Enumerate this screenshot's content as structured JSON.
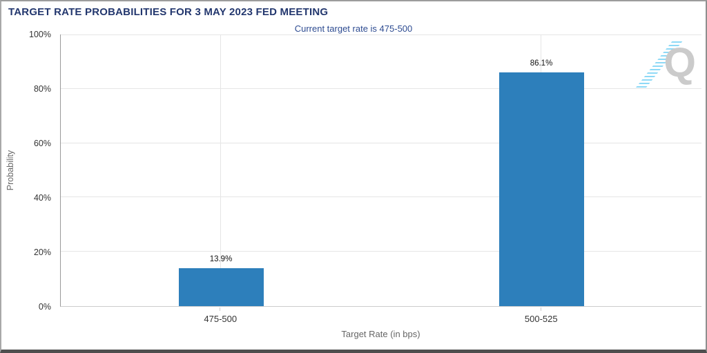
{
  "header": {
    "title": "TARGET RATE PROBABILITIES FOR 3 MAY 2023 FED MEETING",
    "subtitle": "Current target rate is 475-500"
  },
  "logo": {
    "letter": "Q"
  },
  "chart_data": {
    "type": "bar",
    "title": "TARGET RATE PROBABILITIES FOR 3 MAY 2023 FED MEETING",
    "subtitle": "Current target rate is 475-500",
    "categories": [
      "475-500",
      "500-525"
    ],
    "values": [
      13.9,
      86.1
    ],
    "data_labels": [
      "13.9%",
      "86.1%"
    ],
    "xlabel": "Target Rate (in bps)",
    "ylabel": "Probability",
    "ylim": [
      0,
      100
    ],
    "yticks": [
      0,
      20,
      40,
      60,
      80,
      100
    ],
    "ytick_labels": [
      "0%",
      "20%",
      "40%",
      "60%",
      "80%",
      "100%"
    ],
    "grid": true,
    "bar_color": "#2d7fbb",
    "colors": {
      "title": "#23376e",
      "subtitle": "#2d4b91",
      "gridline": "#e5e5e5",
      "axis_left": "#989898",
      "axis_bottom": "#cccccc",
      "tick_label": "#333333",
      "axis_title": "#666666",
      "watermark_gray": "#cbcbcb",
      "watermark_blue": "#8ed9f6"
    }
  }
}
